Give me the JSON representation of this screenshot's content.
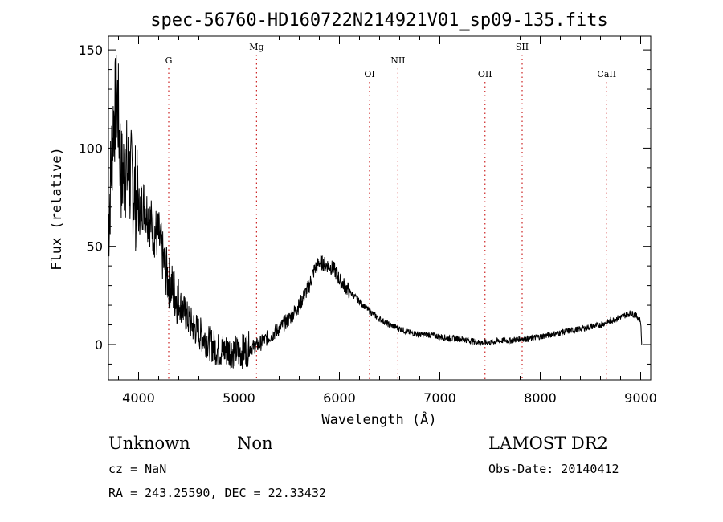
{
  "chart_data": {
    "type": "line",
    "title": "spec-56760-HD160722N214921V01_sp09-135.fits",
    "xlabel": "Wavelength (Å)",
    "ylabel": "Flux (relative)",
    "xlim": [
      3700,
      9100
    ],
    "ylim": [
      -18,
      157
    ],
    "xticks": [
      4000,
      5000,
      6000,
      7000,
      8000,
      9000
    ],
    "yticks": [
      0,
      50,
      100,
      150
    ],
    "grid": false,
    "line_color": "#000000",
    "marker_color": "#cc2222",
    "lines": [
      {
        "label": "G",
        "x": 4300
      },
      {
        "label": "Mg",
        "x": 5175
      },
      {
        "label": "OI",
        "x": 6300
      },
      {
        "label": "NII",
        "x": 6583
      },
      {
        "label": "OII",
        "x": 7450
      },
      {
        "label": "SII",
        "x": 7820
      },
      {
        "label": "CaII",
        "x": 8662
      }
    ],
    "series": [
      {
        "x": [
          3700,
          3750,
          3790,
          3830,
          3870,
          3950,
          4000,
          4050,
          4100,
          4150,
          4200,
          4250,
          4300,
          4400,
          4500,
          4600,
          4700,
          4800,
          4900,
          5000,
          5100,
          5200,
          5300,
          5400,
          5500,
          5600,
          5700,
          5750,
          5800,
          5850,
          5900,
          5950,
          6000,
          6100,
          6200,
          6300,
          6400,
          6500,
          6600,
          6700,
          6800,
          6900,
          7000,
          7100,
          7200,
          7300,
          7400,
          7500,
          7600,
          7700,
          7800,
          7900,
          8000,
          8100,
          8200,
          8300,
          8400,
          8500,
          8600,
          8700,
          8800,
          8850,
          8900,
          8950,
          9000,
          9010
        ],
        "y": [
          60,
          115,
          125,
          85,
          90,
          80,
          68,
          72,
          65,
          58,
          55,
          42,
          32,
          22,
          12,
          6,
          1,
          -3,
          -3,
          -4,
          -2,
          0,
          4,
          8,
          13,
          20,
          30,
          38,
          42,
          41,
          40,
          38,
          33,
          27,
          22,
          17,
          13,
          10,
          8,
          6,
          5,
          5,
          4,
          3,
          3,
          2,
          1,
          1,
          2,
          2,
          3,
          3,
          4,
          5,
          6,
          7,
          8,
          9,
          10,
          12,
          14,
          15,
          16,
          15,
          12,
          0
        ]
      }
    ]
  },
  "footer": {
    "object_class": "Unknown",
    "subclass": "Non",
    "survey": "LAMOST DR2",
    "redshift": "cz = NaN",
    "obs_date": "Obs-Date: 20140412",
    "coords": "RA = 243.25590, DEC =  22.33432"
  }
}
